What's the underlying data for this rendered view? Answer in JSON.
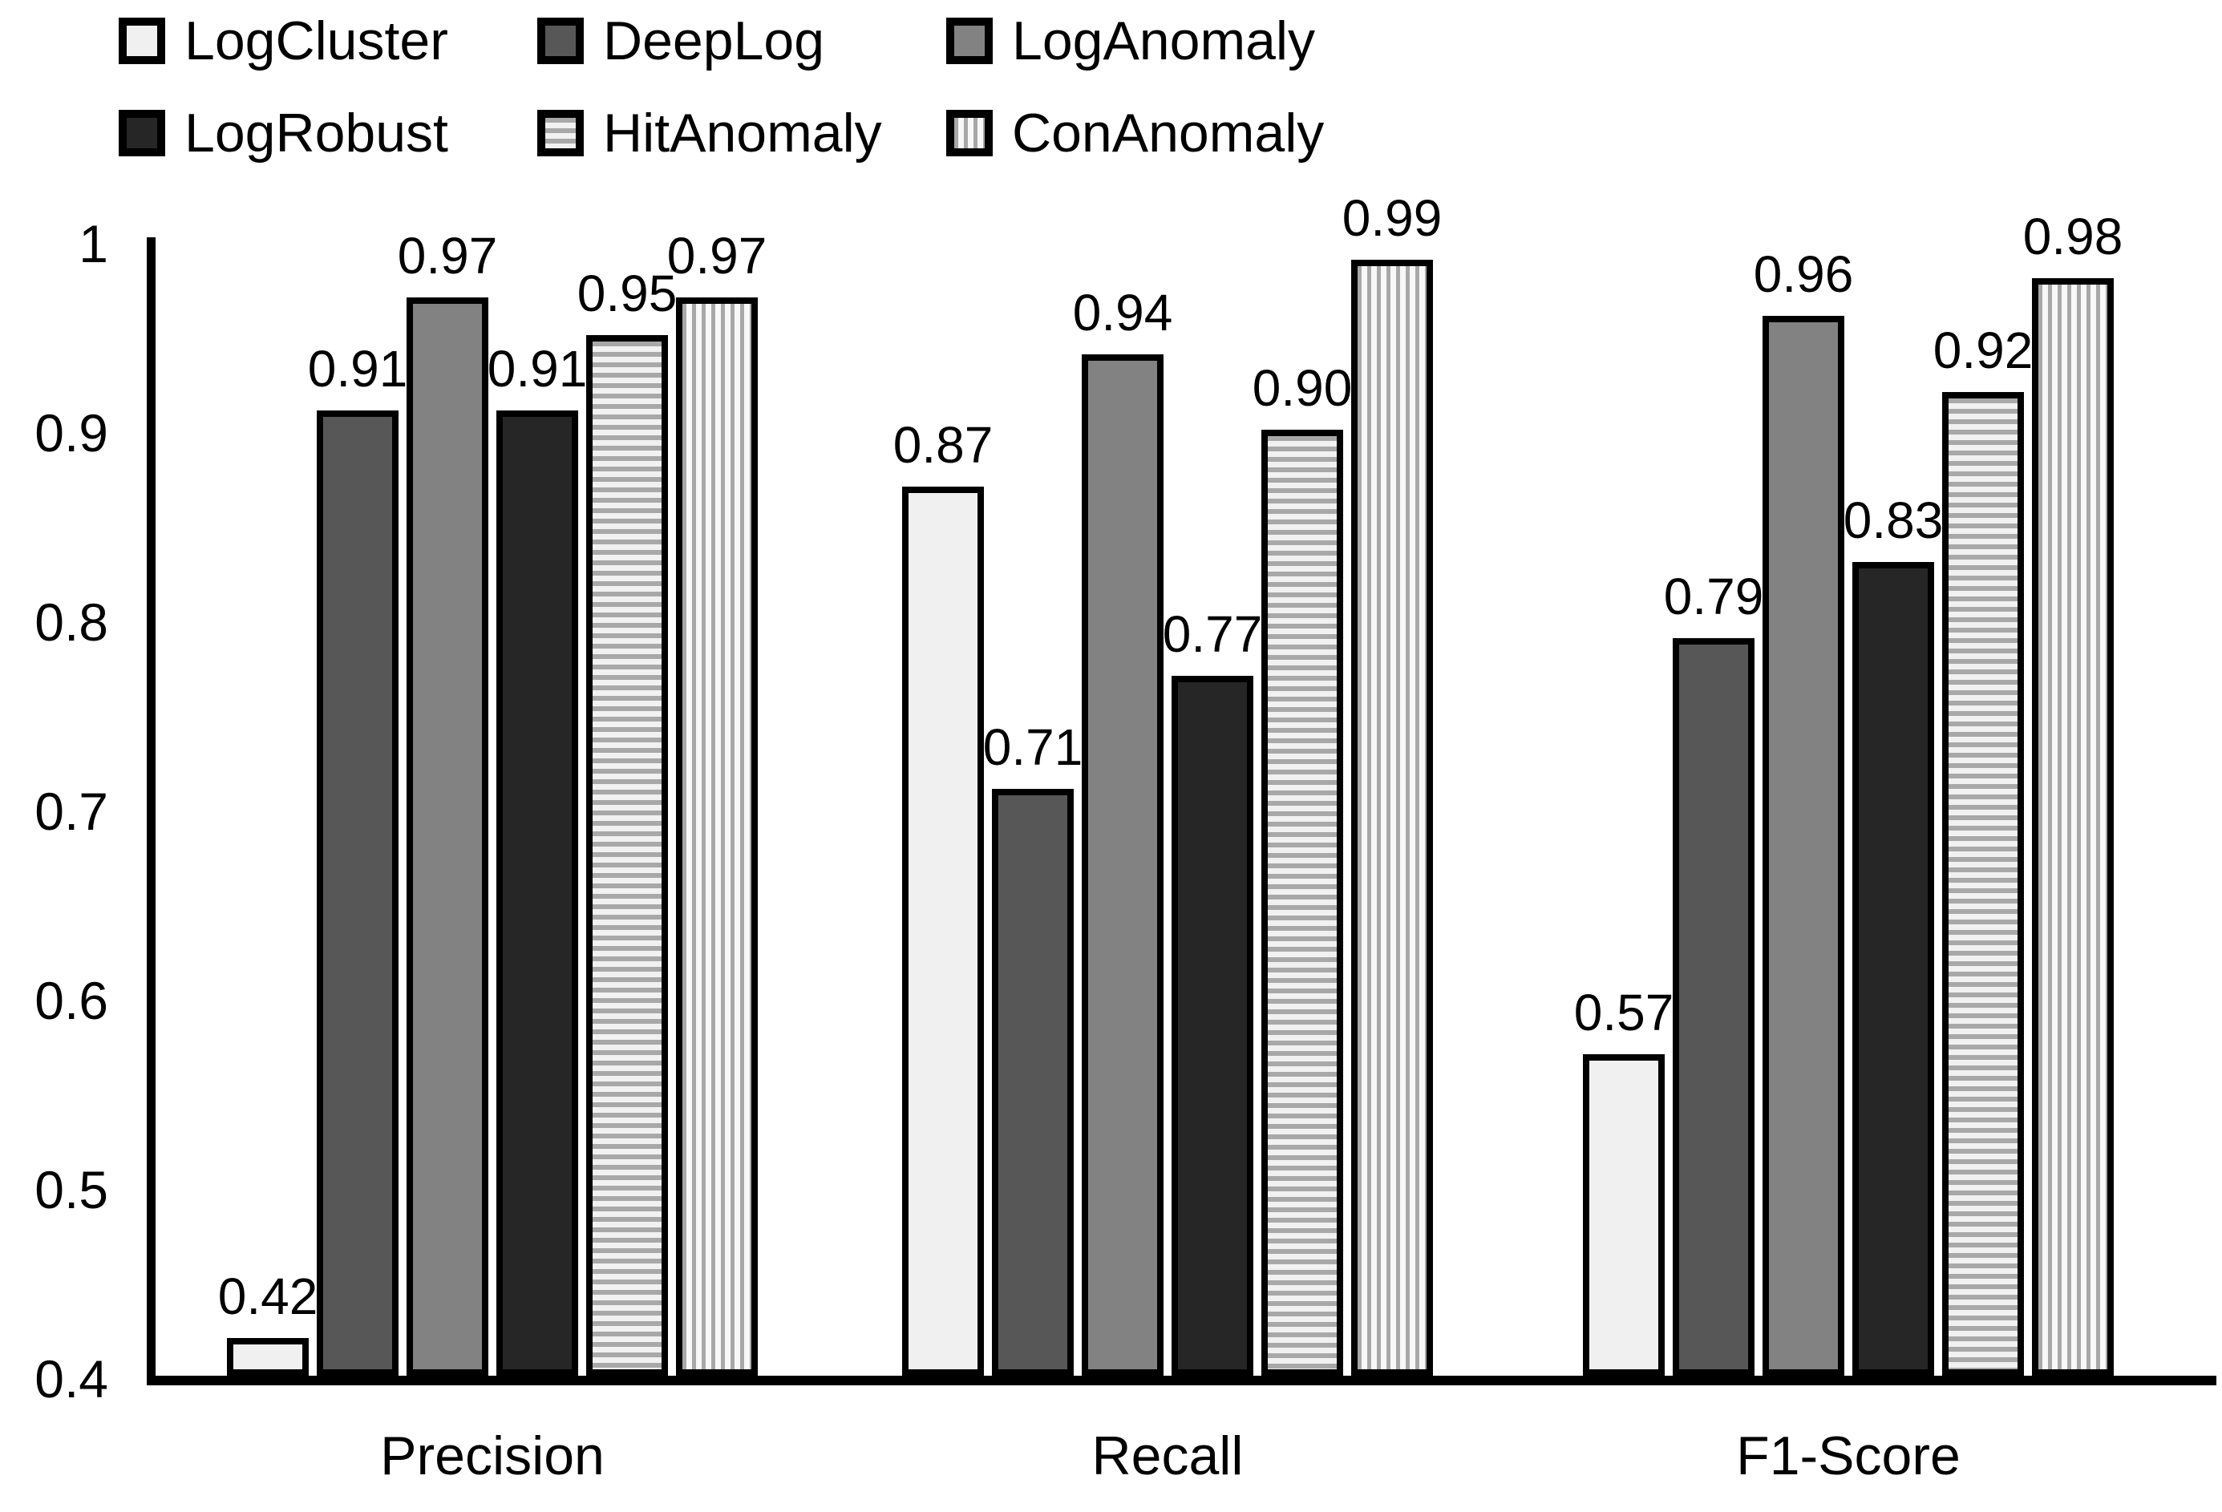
{
  "figure": {
    "kind": "grouped-bar-chart",
    "background": "#ffffff",
    "border_color": "#000000"
  },
  "axes": {
    "y_ticks": [
      {
        "label": "1",
        "value": 1.0
      },
      {
        "label": "0.9",
        "value": 0.9
      },
      {
        "label": "0.8",
        "value": 0.8
      },
      {
        "label": "0.7",
        "value": 0.7
      },
      {
        "label": "0.6",
        "value": 0.6
      },
      {
        "label": "0.5",
        "value": 0.5
      },
      {
        "label": "0.4",
        "value": 0.4
      }
    ]
  },
  "chart_data": {
    "type": "bar",
    "title": "",
    "xlabel": "",
    "ylabel": "",
    "categories": [
      "Precision",
      "Recall",
      "F1-Score"
    ],
    "ylim": [
      0.4,
      1.0
    ],
    "grid": false,
    "data_labels": true,
    "legend_position": "top-left",
    "series": [
      {
        "name": "LogCluster",
        "values": [
          0.42,
          0.87,
          0.57
        ],
        "labels": [
          "0.42",
          "0.87",
          "0.57"
        ],
        "fill": "#f0f0f0",
        "pattern": "solid"
      },
      {
        "name": "DeepLog",
        "values": [
          0.91,
          0.71,
          0.79
        ],
        "labels": [
          "0.91",
          "0.71",
          "0.79"
        ],
        "fill": "#575757",
        "pattern": "solid"
      },
      {
        "name": "LogAnomaly",
        "values": [
          0.97,
          0.94,
          0.96
        ],
        "labels": [
          "0.97",
          "0.94",
          "0.96"
        ],
        "fill": "#828282",
        "pattern": "solid"
      },
      {
        "name": "LogRobust",
        "values": [
          0.91,
          0.77,
          0.83
        ],
        "labels": [
          "0.91",
          "0.77",
          "0.83"
        ],
        "fill": "#262626",
        "pattern": "solid"
      },
      {
        "name": "HitAnomaly",
        "values": [
          0.95,
          0.9,
          0.92
        ],
        "labels": [
          "0.95",
          "0.90",
          "0.92"
        ],
        "fill": "#f1f1f1",
        "pattern": "hstripe",
        "stripe": "#a8a8a8"
      },
      {
        "name": "ConAnomaly",
        "values": [
          0.97,
          0.99,
          0.98
        ],
        "labels": [
          "0.97",
          "0.99",
          "0.98"
        ],
        "fill": "#f8f8f8",
        "pattern": "vstripe",
        "stripe": "#a8a8a8"
      }
    ]
  }
}
